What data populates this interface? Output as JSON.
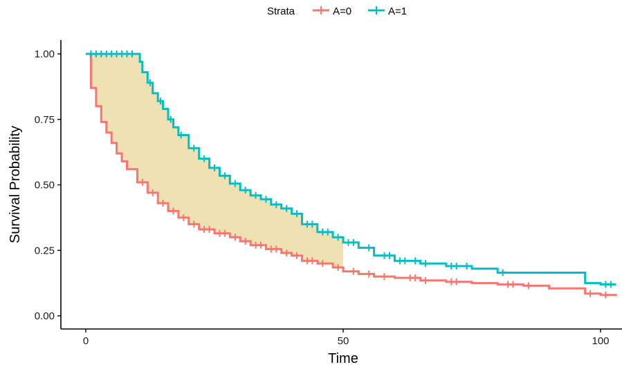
{
  "chart_data": {
    "type": "line",
    "subtype": "kaplan-meier step curves with censor marks",
    "xlabel": "Time",
    "ylabel": "Survival Probability",
    "xlim": [
      0,
      100
    ],
    "ylim": [
      0,
      1
    ],
    "x_ticks": [
      0,
      50,
      100
    ],
    "x_tick_labels": [
      "0",
      "50",
      "100"
    ],
    "y_ticks": [
      0,
      0.25,
      0.5,
      0.75,
      1
    ],
    "y_tick_labels": [
      "0.00",
      "0.25",
      "0.50",
      "0.75",
      "1.00"
    ],
    "grid": false,
    "legend": {
      "title": "Strata",
      "position": "top"
    },
    "shaded_region": {
      "x_from": 0,
      "x_to": 50,
      "between": [
        "A=1",
        "A=0"
      ],
      "color": "#EEE2B4"
    },
    "series": [
      {
        "name": "A=0",
        "color": "#F8766D",
        "x": [
          0,
          1,
          2,
          3,
          4,
          5,
          6,
          7,
          8,
          10,
          12,
          14,
          16,
          18,
          20,
          22,
          25,
          28,
          30,
          32,
          35,
          38,
          40,
          42,
          45,
          48,
          50,
          53,
          56,
          60,
          65,
          70,
          75,
          80,
          85,
          90,
          97,
          100,
          103
        ],
        "y": [
          1.0,
          0.87,
          0.8,
          0.74,
          0.7,
          0.66,
          0.62,
          0.59,
          0.56,
          0.51,
          0.47,
          0.43,
          0.4,
          0.375,
          0.35,
          0.33,
          0.315,
          0.3,
          0.285,
          0.27,
          0.255,
          0.24,
          0.23,
          0.21,
          0.2,
          0.185,
          0.17,
          0.16,
          0.15,
          0.145,
          0.135,
          0.13,
          0.125,
          0.12,
          0.115,
          0.105,
          0.085,
          0.08,
          0.075
        ],
        "censor_x": [
          11,
          13,
          15,
          17,
          19,
          21,
          23,
          24,
          26,
          27,
          29,
          31,
          33,
          34,
          36,
          37,
          39,
          41,
          43,
          44,
          46,
          49,
          52,
          55,
          58,
          63,
          64,
          66,
          71,
          72,
          82,
          83,
          86,
          98,
          101
        ]
      },
      {
        "name": "A=1",
        "color": "#00BFC4",
        "x": [
          0,
          10,
          10.5,
          11,
          12,
          13,
          14,
          15,
          16,
          17,
          18,
          20,
          22,
          24,
          26,
          28,
          30,
          32,
          34,
          36,
          38,
          40,
          42,
          45,
          48,
          50,
          53,
          56,
          60,
          65,
          70,
          75,
          80,
          90,
          97,
          100,
          103
        ],
        "y": [
          1.0,
          1.0,
          0.97,
          0.93,
          0.89,
          0.85,
          0.82,
          0.79,
          0.75,
          0.72,
          0.69,
          0.64,
          0.6,
          0.565,
          0.535,
          0.505,
          0.48,
          0.46,
          0.445,
          0.425,
          0.41,
          0.39,
          0.35,
          0.32,
          0.3,
          0.28,
          0.26,
          0.23,
          0.21,
          0.2,
          0.19,
          0.18,
          0.165,
          0.165,
          0.125,
          0.12,
          0.12
        ],
        "censor_x": [
          1,
          2,
          3,
          4,
          5,
          6,
          7,
          8,
          9,
          12.5,
          14.5,
          16.5,
          18.5,
          21,
          23,
          25,
          27,
          29,
          31,
          33,
          35,
          37,
          39,
          41,
          43,
          44,
          46,
          47,
          49,
          51,
          52,
          55,
          58,
          59,
          61,
          62,
          64,
          66,
          71,
          72,
          74,
          81,
          101,
          102
        ]
      }
    ]
  }
}
